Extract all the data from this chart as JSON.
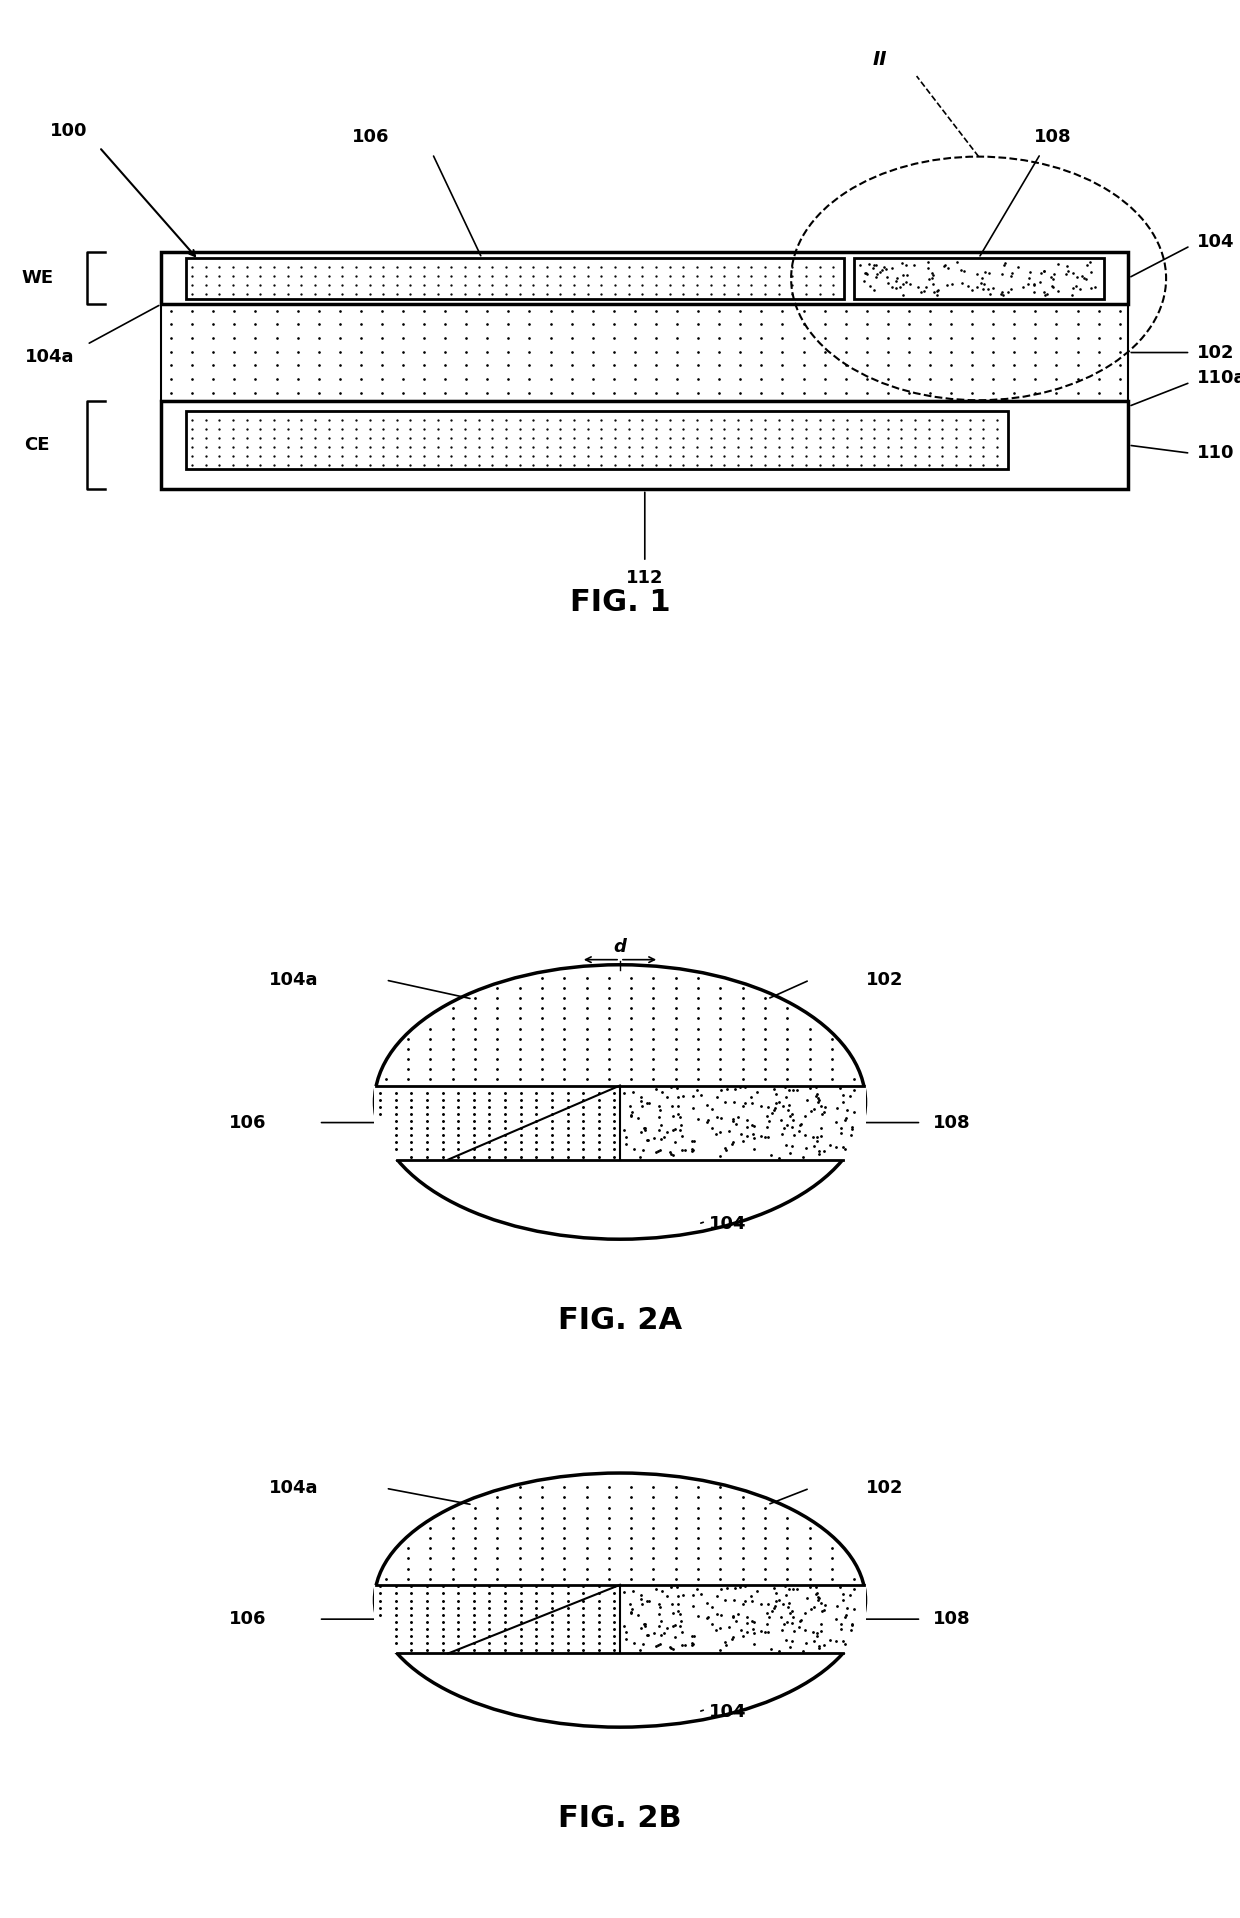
{
  "fig_width": 12.4,
  "fig_height": 19.18,
  "bg_color": "#ffffff",
  "line_color": "#000000",
  "fig1": {
    "title": "FIG. 1",
    "label_100": "100",
    "label_102": "102",
    "label_104": "104",
    "label_104a": "104a",
    "label_106": "106",
    "label_108": "108",
    "label_110": "110",
    "label_110a": "110a",
    "label_112": "112",
    "label_WE": "WE",
    "label_CE": "CE",
    "label_II": "II"
  },
  "fig2a": {
    "title": "FIG. 2A",
    "label_d": "d",
    "label_102": "102",
    "label_104": "104",
    "label_104a": "104a",
    "label_106": "106",
    "label_108": "108"
  },
  "fig2b": {
    "title": "FIG. 2B",
    "label_102": "102",
    "label_104": "104",
    "label_104a": "104a",
    "label_106": "106",
    "label_108": "108"
  }
}
